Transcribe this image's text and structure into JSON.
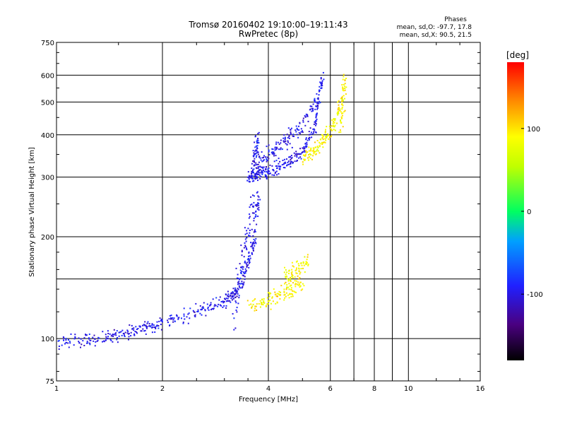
{
  "chart_data": {
    "type": "scatter",
    "title": "Tromsø 20160402 19:10:00–19:11:43",
    "subtitle": "RwPretec (8p)",
    "xlabel": "Frequency [MHz]",
    "ylabel": "Stationary phase Virtual Height [km]",
    "x_scale": "log",
    "y_scale": "log",
    "xlim": [
      1,
      16
    ],
    "ylim": [
      75,
      750
    ],
    "x_ticks": [
      1,
      2,
      4,
      6,
      8,
      10,
      16
    ],
    "x_tick_labels": [
      "1",
      "2",
      "4",
      "6",
      "8",
      "10",
      "16"
    ],
    "x_extra_gridlines": [
      7,
      9
    ],
    "y_ticks": [
      75,
      100,
      200,
      300,
      400,
      500,
      600,
      750
    ],
    "y_tick_labels": [
      "75",
      "100",
      "200",
      "300",
      "400",
      "500",
      "600",
      "750"
    ],
    "y_extra_gridlines": [
      150
    ],
    "grid": true,
    "stats": {
      "heading": "Phases",
      "line1": "mean, sd,O: -97.7, 17.8",
      "line2": "mean, sd,X:  90.5, 21.5"
    },
    "colorbar": {
      "label": "[deg]",
      "range": [
        -180,
        180
      ],
      "ticks": [
        -100,
        0,
        100
      ],
      "tick_labels": [
        "-100",
        "0",
        "100"
      ]
    },
    "series": [
      {
        "mode": "O",
        "phase_mean": -97.7,
        "phase_sd": 17.8,
        "traces": [
          {
            "x": [
              1.0,
              1.1,
              1.2,
              1.3,
              1.4,
              1.5,
              1.6,
              1.7,
              1.8,
              1.9,
              2.0,
              2.2,
              2.4,
              2.6,
              2.8,
              3.0,
              3.1,
              3.2,
              3.3,
              3.4,
              3.5,
              3.6,
              3.7
            ],
            "y": [
              98,
              98,
              99,
              100,
              101,
              103,
              105,
              107,
              108,
              110,
              112,
              115,
              118,
              121,
              125,
              128,
              131,
              135,
              140,
              150,
              165,
              185,
              205
            ],
            "spread": 0.04
          },
          {
            "x": [
              3.2,
              3.3,
              3.4,
              3.5,
              3.6,
              3.7,
              3.75
            ],
            "y": [
              120,
              150,
              180,
              210,
              235,
              250,
              255
            ],
            "spread": 0.12
          },
          {
            "x": [
              3.5,
              3.6,
              3.7,
              3.8,
              3.9,
              4.0,
              4.2,
              4.4,
              4.6,
              4.8,
              5.0,
              5.2,
              5.4,
              5.5,
              5.6,
              5.7
            ],
            "y": [
              300,
              302,
              305,
              308,
              310,
              312,
              318,
              325,
              335,
              345,
              360,
              385,
              420,
              470,
              540,
              600
            ],
            "spread": 0.04
          },
          {
            "x": [
              3.6,
              3.65,
              3.7,
              3.75
            ],
            "y": [
              310,
              340,
              370,
              390
            ],
            "spread": 0.06
          },
          {
            "x": [
              3.7,
              3.9,
              4.1,
              4.3,
              4.5,
              4.7,
              5.0,
              5.3,
              5.5
            ],
            "y": [
              330,
              345,
              355,
              370,
              385,
              400,
              430,
              470,
              520
            ],
            "spread": 0.05
          }
        ]
      },
      {
        "mode": "X",
        "phase_mean": 90.5,
        "phase_sd": 21.5,
        "traces": [
          {
            "x": [
              3.5,
              3.8,
              4.0,
              4.2,
              4.4,
              4.6,
              4.8,
              5.0
            ],
            "y": [
              125,
              128,
              130,
              133,
              136,
              139,
              142,
              147
            ],
            "spread": 0.05
          },
          {
            "x": [
              4.4,
              4.6,
              4.8,
              5.0,
              5.2
            ],
            "y": [
              150,
              155,
              160,
              165,
              170
            ],
            "spread": 0.06
          },
          {
            "x": [
              5.0,
              5.2,
              5.4,
              5.6,
              5.8,
              6.0,
              6.2,
              6.4,
              6.6
            ],
            "y": [
              345,
              350,
              360,
              375,
              390,
              410,
              440,
              490,
              560
            ],
            "spread": 0.05
          },
          {
            "x": [
              6.4,
              6.5,
              6.6
            ],
            "y": [
              420,
              480,
              600
            ],
            "spread": 0.08
          }
        ]
      }
    ]
  }
}
